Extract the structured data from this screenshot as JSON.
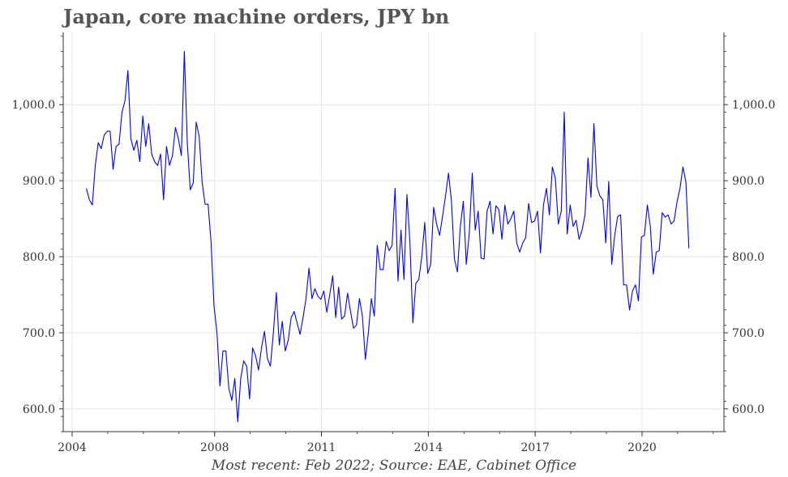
{
  "title": "Japan, core machine orders, JPY bn",
  "caption": "Most recent: Feb 2022; Source: EAE, Cabinet Office",
  "colors": {
    "series": "#0000ff",
    "grid": "#e6e6e6",
    "axis": "#333333",
    "title": "#555555"
  },
  "chart_data": {
    "type": "line",
    "title": "Japan, core machine orders, JPY bn",
    "xlabel": "",
    "ylabel": "",
    "xlim": [
      2003.75,
      2022.3
    ],
    "ylim": [
      570,
      1095
    ],
    "grid": true,
    "dual_y_axis": true,
    "x_ticks": [
      2004,
      2008,
      2011,
      2014,
      2017,
      2020
    ],
    "x_tick_labels": [
      "2004",
      "2008",
      "2011",
      "2014",
      "2017",
      "2020"
    ],
    "y_ticks": [
      600,
      700,
      800,
      900,
      1000
    ],
    "y_tick_labels": [
      "600.0",
      "700.0",
      "800.0",
      "900.0",
      "1,000.0"
    ],
    "series": [
      {
        "color": "#0000ff",
        "x_start": 2004.4,
        "x_step": 0.08333,
        "values": [
          890,
          875,
          868,
          920,
          950,
          942,
          960,
          965,
          965,
          915,
          945,
          948,
          990,
          1005,
          1045,
          955,
          940,
          953,
          925,
          985,
          945,
          975,
          935,
          925,
          920,
          935,
          875,
          945,
          920,
          933,
          970,
          955,
          933,
          1070,
          950,
          888,
          897,
          977,
          958,
          898,
          869,
          869,
          820,
          735,
          700,
          630,
          676,
          676,
          627,
          611,
          640,
          583,
          640,
          663,
          656,
          613,
          680,
          670,
          651,
          680,
          702,
          666,
          656,
          700,
          753,
          684,
          715,
          676,
          690,
          720,
          728,
          713,
          698,
          720,
          745,
          785,
          745,
          758,
          748,
          744,
          755,
          727,
          750,
          775,
          720,
          760,
          718,
          722,
          752,
          728,
          706,
          710,
          745,
          722,
          665,
          700,
          745,
          722,
          815,
          783,
          783,
          820,
          808,
          815,
          890,
          768,
          835,
          770,
          882,
          820,
          713,
          765,
          770,
          800,
          845,
          778,
          790,
          865,
          843,
          828,
          853,
          880,
          910,
          873,
          797,
          780,
          840,
          873,
          790,
          830,
          910,
          835,
          860,
          798,
          797,
          860,
          873,
          830,
          867,
          862,
          823,
          868,
          843,
          850,
          860,
          818,
          806,
          818,
          825,
          870,
          845,
          847,
          860,
          805,
          868,
          890,
          855,
          918,
          903,
          843,
          860,
          990,
          830,
          868,
          840,
          848,
          823,
          835,
          855,
          930,
          878,
          975,
          893,
          880,
          875,
          818,
          899,
          790,
          828,
          853,
          855,
          763,
          763,
          730,
          755,
          763,
          742,
          826,
          828,
          868,
          840,
          777,
          806,
          808,
          858,
          852,
          855,
          843,
          847,
          872,
          890,
          918,
          898,
          811
        ]
      }
    ]
  }
}
